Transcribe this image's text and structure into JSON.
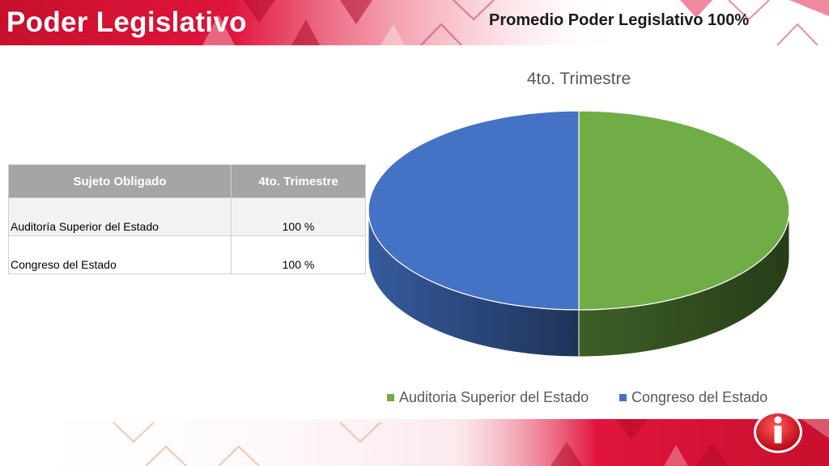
{
  "header": {
    "title": "Poder Legislativo",
    "subtitle": "Promedio Poder Legislativo 100%"
  },
  "table": {
    "columns": [
      "Sujeto Obligado",
      "4to. Trimestre"
    ],
    "rows": [
      {
        "name": "Auditoría Superior del Estado",
        "value": "100 %"
      },
      {
        "name": "Congreso del Estado",
        "value": "100 %"
      }
    ]
  },
  "chart_data": {
    "type": "pie",
    "title": "4to. Trimestre",
    "labels": [
      "Auditoria Superior del Estado",
      "Congreso del Estado"
    ],
    "values": [
      100,
      100
    ],
    "colors": [
      "#70ad47",
      "#4472c4"
    ],
    "legend_position": "bottom",
    "style": "3d"
  },
  "colors": {
    "accent": "#e0143c",
    "brand_dark": "#b01030"
  },
  "icons": {
    "logo": "info-icon"
  }
}
